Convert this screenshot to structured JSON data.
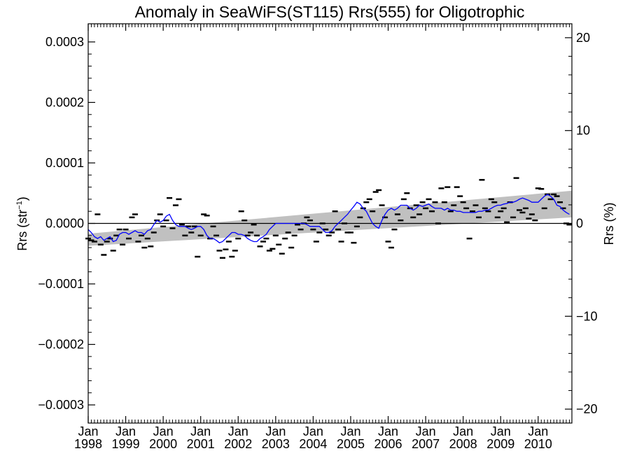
{
  "chart_data": {
    "type": "line",
    "title": "Anomaly in SeaWiFS(ST115) Rrs(555) for Oligotrophic",
    "ylabel_left": "Rrs (str",
    "ylabel_left_sup": "−1",
    "ylabel_left_tail": ")",
    "ylabel_right": "Rrs (%)",
    "xlim": [
      1998.0,
      2010.9
    ],
    "ylim": [
      -0.00033,
      0.00033
    ],
    "yticks": [
      -0.0003,
      -0.0002,
      -0.0001,
      0.0,
      0.0001,
      0.0002,
      0.0003
    ],
    "ytick_labels": [
      "−0.0003",
      "−0.0002",
      "−0.0001",
      "0.0000",
      "0.0001",
      "0.0002",
      "0.0003"
    ],
    "right_ylim": [
      -21.5,
      21.5
    ],
    "right_yticks": [
      -20,
      -10,
      0,
      10,
      20
    ],
    "right_ytick_labels": [
      "−20",
      "−10",
      "0",
      "10",
      "20"
    ],
    "xticks": [
      1998,
      1999,
      2000,
      2001,
      2002,
      2003,
      2004,
      2005,
      2006,
      2007,
      2008,
      2009,
      2010
    ],
    "xtick_month": "Jan",
    "xtick_years": [
      "1998",
      "1999",
      "2000",
      "2001",
      "2002",
      "2003",
      "2004",
      "2005",
      "2006",
      "2007",
      "2008",
      "2009",
      "2010"
    ],
    "grid": false,
    "colors": {
      "line": "#0000ff",
      "band": "#c0c0c0",
      "markers": "#000000",
      "zero_line": "#000000"
    },
    "trend_band": {
      "x": [
        1998.0,
        2010.9
      ],
      "upper": [
        -1.7e-05,
        5.4e-05
      ],
      "lower": [
        -3.7e-05,
        1e-05
      ]
    },
    "monthly_anomalies": {
      "x": [
        1998.0,
        1998.083,
        1998.167,
        1998.25,
        1998.333,
        1998.417,
        1998.5,
        1998.583,
        1998.667,
        1998.75,
        1998.833,
        1998.917,
        1999.0,
        1999.083,
        1999.167,
        1999.25,
        1999.333,
        1999.417,
        1999.5,
        1999.583,
        1999.667,
        1999.75,
        1999.833,
        1999.917,
        2000.0,
        2000.083,
        2000.167,
        2000.25,
        2000.333,
        2000.417,
        2000.5,
        2000.583,
        2000.667,
        2000.75,
        2000.833,
        2000.917,
        2001.0,
        2001.083,
        2001.167,
        2001.25,
        2001.333,
        2001.417,
        2001.5,
        2001.583,
        2001.667,
        2001.75,
        2001.833,
        2001.917,
        2002.0,
        2002.083,
        2002.167,
        2002.25,
        2002.333,
        2002.417,
        2002.5,
        2002.583,
        2002.667,
        2002.75,
        2002.833,
        2002.917,
        2003.0,
        2003.083,
        2003.167,
        2003.25,
        2003.333,
        2003.417,
        2003.5,
        2003.583,
        2003.667,
        2003.75,
        2003.833,
        2003.917,
        2004.0,
        2004.083,
        2004.167,
        2004.25,
        2004.333,
        2004.417,
        2004.5,
        2004.583,
        2004.667,
        2004.75,
        2004.833,
        2004.917,
        2005.0,
        2005.083,
        2005.167,
        2005.25,
        2005.333,
        2005.417,
        2005.5,
        2005.583,
        2005.667,
        2005.75,
        2005.833,
        2005.917,
        2006.0,
        2006.083,
        2006.167,
        2006.25,
        2006.333,
        2006.417,
        2006.5,
        2006.583,
        2006.667,
        2006.75,
        2006.833,
        2006.917,
        2007.0,
        2007.083,
        2007.167,
        2007.25,
        2007.333,
        2007.417,
        2007.5,
        2007.583,
        2007.667,
        2007.75,
        2007.833,
        2007.917,
        2008.0,
        2008.083,
        2008.167,
        2008.25,
        2008.333,
        2008.417,
        2008.5,
        2008.583,
        2008.667,
        2008.75,
        2008.833,
        2008.917,
        2009.0,
        2009.083,
        2009.167,
        2009.25,
        2009.333,
        2009.417,
        2009.5,
        2009.583,
        2009.667,
        2009.75,
        2009.833,
        2009.917,
        2010.0,
        2010.083,
        2010.167,
        2010.25,
        2010.333,
        2010.417,
        2010.5,
        2010.583,
        2010.667,
        2010.75,
        2010.833
      ],
      "y": [
        -2.5e-05,
        -2.8e-05,
        -3e-05,
        1.5e-05,
        -3.5e-05,
        -5.2e-05,
        -3e-05,
        -2.5e-05,
        -4.5e-05,
        -2e-05,
        -1e-05,
        -3.5e-05,
        -1e-05,
        -2.5e-05,
        1e-05,
        1.5e-05,
        -3e-05,
        -2e-05,
        -4e-05,
        -2.5e-05,
        -3.8e-05,
        -1.5e-05,
        5e-06,
        1.5e-05,
        -5e-06,
        5e-06,
        4.2e-05,
        -8e-06,
        3e-05,
        4e-05,
        -2e-06,
        -2e-05,
        -5e-06,
        -1.5e-05,
        -5e-06,
        -5.5e-05,
        -2e-05,
        1.5e-05,
        1.3e-05,
        -2.5e-05,
        -5e-06,
        -2e-05,
        -4.5e-05,
        -5.7e-05,
        -4.3e-05,
        -3e-05,
        -5.5e-05,
        -4.5e-05,
        -2.5e-05,
        2e-05,
        5e-06,
        -2e-05,
        -1.5e-05,
        -2e-06,
        -2e-05,
        -3.8e-05,
        -3e-05,
        -2.5e-05,
        -4.5e-05,
        -4.2e-05,
        -2e-05,
        -3.5e-05,
        -5e-05,
        -2.5e-05,
        -1.5e-05,
        -4e-05,
        -2e-05,
        -2e-06,
        -1e-05,
        0.0,
        1e-05,
        5e-06,
        -1e-05,
        -3e-05,
        -1.5e-05,
        0.0,
        -1e-05,
        -2e-05,
        -1.5e-05,
        2e-05,
        -1e-05,
        -3e-05,
        0.0,
        -1.5e-05,
        -1.5e-05,
        -3.2e-05,
        -5e-06,
        1e-05,
        2.5e-05,
        3.5e-05,
        4e-05,
        2e-05,
        5.2e-05,
        5.5e-05,
        3e-05,
        1e-05,
        -3e-05,
        -4e-05,
        -1e-05,
        1.5e-05,
        5e-06,
        4e-05,
        5e-05,
        2.5e-05,
        1e-05,
        3e-05,
        1.5e-05,
        3.5e-05,
        2.5e-05,
        4e-05,
        2e-05,
        3.5e-05,
        0.0,
        5.8e-05,
        3.5e-05,
        6e-05,
        2e-05,
        3e-05,
        6e-05,
        4.5e-05,
        3.5e-05,
        2.5e-05,
        -2.5e-05,
        2e-05,
        3e-05,
        1e-05,
        7.2e-05,
        2.5e-05,
        2e-05,
        4e-05,
        3.5e-05,
        1e-05,
        2e-05,
        2.5e-05,
        2e-06,
        3.5e-05,
        1e-05,
        7.5e-05,
        2.2e-05,
        1.8e-05,
        2.5e-05,
        8e-06,
        1.5e-05,
        5e-06,
        5.8e-05,
        5.7e-05,
        2.5e-05,
        4.8e-05,
        4e-05,
        4.8e-05,
        4.5e-05,
        3.5e-05,
        2.5e-05,
        0.0,
        -2e-06
      ]
    },
    "series": [
      {
        "x": [
          1998.0,
          1998.083,
          1998.167,
          1998.25,
          1998.333,
          1998.417,
          1998.5,
          1998.583,
          1998.667,
          1998.75,
          1998.833,
          1998.917,
          1999.0,
          1999.083,
          1999.167,
          1999.25,
          1999.333,
          1999.417,
          1999.5,
          1999.583,
          1999.667,
          1999.75,
          1999.833,
          1999.917,
          2000.0,
          2000.083,
          2000.167,
          2000.25,
          2000.333,
          2000.417,
          2000.5,
          2000.583,
          2000.667,
          2000.75,
          2000.833,
          2000.917,
          2001.0,
          2001.083,
          2001.167,
          2001.25,
          2001.333,
          2001.417,
          2001.5,
          2001.583,
          2001.667,
          2001.75,
          2001.833,
          2001.917,
          2002.0,
          2002.083,
          2002.167,
          2002.25,
          2002.333,
          2002.417,
          2002.5,
          2002.583,
          2002.667,
          2002.75,
          2002.833,
          2002.917,
          2003.0,
          2003.083,
          2003.167,
          2003.25,
          2003.333,
          2003.417,
          2003.5,
          2003.583,
          2003.667,
          2003.75,
          2003.833,
          2003.917,
          2004.0,
          2004.083,
          2004.167,
          2004.25,
          2004.333,
          2004.417,
          2004.5,
          2004.583,
          2004.667,
          2004.75,
          2004.833,
          2004.917,
          2005.0,
          2005.083,
          2005.167,
          2005.25,
          2005.333,
          2005.417,
          2005.5,
          2005.583,
          2005.667,
          2005.75,
          2005.833,
          2005.917,
          2006.0,
          2006.083,
          2006.167,
          2006.25,
          2006.333,
          2006.417,
          2006.5,
          2006.583,
          2006.667,
          2006.75,
          2006.833,
          2006.917,
          2007.0,
          2007.083,
          2007.167,
          2007.25,
          2007.333,
          2007.417,
          2007.5,
          2007.583,
          2007.667,
          2007.75,
          2007.833,
          2007.917,
          2008.0,
          2008.083,
          2008.167,
          2008.25,
          2008.333,
          2008.417,
          2008.5,
          2008.583,
          2008.667,
          2008.75,
          2008.833,
          2008.917,
          2009.0,
          2009.083,
          2009.167,
          2009.25,
          2009.333,
          2009.417,
          2009.5,
          2009.583,
          2009.667,
          2009.75,
          2009.833,
          2009.917,
          2010.0,
          2010.083,
          2010.167,
          2010.25,
          2010.333,
          2010.417,
          2010.5,
          2010.583,
          2010.667,
          2010.75,
          2010.833
        ],
        "y": [
          -1e-05,
          -1.5e-05,
          -2.2e-05,
          -2.5e-05,
          -2.2e-05,
          -2.8e-05,
          -2.5e-05,
          -2.2e-05,
          -3e-05,
          -2.8e-05,
          -1.8e-05,
          -1.5e-05,
          -1.5e-05,
          -1.8e-05,
          -1.5e-05,
          -1.2e-05,
          -1.5e-05,
          -1.5e-05,
          -1.8e-05,
          -1.2e-05,
          -1e-05,
          -2e-06,
          5e-06,
          2e-06,
          5e-06,
          1.2e-05,
          1.5e-05,
          5e-06,
          -2e-06,
          -5e-06,
          -5e-06,
          -5e-06,
          -8e-06,
          -1e-05,
          -8e-06,
          -5e-06,
          -5e-06,
          -1e-05,
          -2e-05,
          -2.5e-05,
          -2.5e-05,
          -2.8e-05,
          -3.2e-05,
          -3e-05,
          -2.5e-05,
          -2e-05,
          -1.5e-05,
          -1.5e-05,
          -1.8e-05,
          -1.8e-05,
          -2e-05,
          -2.5e-05,
          -2.8e-05,
          -3e-05,
          -3e-05,
          -2.5e-05,
          -2.2e-05,
          -1.8e-05,
          -1e-05,
          -5e-06,
          0.0,
          0.0,
          0.0,
          0.0,
          0.0,
          0.0,
          0.0,
          0.0,
          0.0,
          0.0,
          -2e-06,
          -5e-06,
          -5e-06,
          -5e-06,
          -5e-06,
          -1e-05,
          -1.5e-05,
          -1.5e-05,
          -1.2e-05,
          -5e-06,
          0.0,
          5e-06,
          1e-05,
          1.5e-05,
          2.2e-05,
          2.8e-05,
          3.5e-05,
          3.2e-05,
          2.5e-05,
          2e-05,
          1e-05,
          0.0,
          -5e-06,
          -8e-06,
          5e-06,
          1.5e-05,
          2.2e-05,
          2.5e-05,
          2.2e-05,
          2.5e-05,
          3e-05,
          3e-05,
          3e-05,
          2.5e-05,
          2.2e-05,
          2.5e-05,
          3e-05,
          2.8e-05,
          3e-05,
          3.2e-05,
          2.8e-05,
          2.5e-05,
          2.5e-05,
          2.5e-05,
          2.2e-05,
          2.5e-05,
          2.2e-05,
          2.2e-05,
          2e-05,
          2e-05,
          1.8e-05,
          1.8e-05,
          1.8e-05,
          1.8e-05,
          1.8e-05,
          2e-05,
          2e-05,
          2.2e-05,
          2.2e-05,
          2.5e-05,
          2.8e-05,
          3e-05,
          3e-05,
          3.2e-05,
          3.3e-05,
          3.5e-05,
          3.5e-05,
          3.7e-05,
          4e-05,
          4.2e-05,
          4e-05,
          3.8e-05,
          3.5e-05,
          3.5e-05,
          3.5e-05,
          4e-05,
          4.5e-05,
          4.8e-05,
          4.5e-05,
          4e-05,
          3e-05,
          2.8e-05,
          2.2e-05,
          1.8e-05,
          1.5e-05
        ]
      }
    ]
  }
}
